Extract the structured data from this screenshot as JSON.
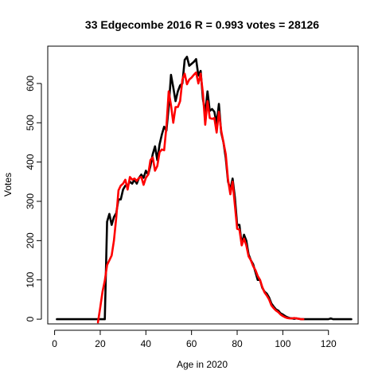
{
  "chart_data": {
    "type": "line",
    "title": "33 Edgecombe 2016 R = 0.993 votes = 28126",
    "xlabel": "Age in 2020",
    "ylabel": "Votes",
    "xlim": [
      -3,
      133
    ],
    "ylim": [
      -12,
      695
    ],
    "x_ticks": [
      0,
      20,
      40,
      60,
      80,
      100,
      120
    ],
    "y_ticks": [
      0,
      100,
      200,
      300,
      400,
      500,
      600
    ],
    "grid": false,
    "legend": "none",
    "series": [
      {
        "color": "#000000",
        "points": [
          [
            1,
            0
          ],
          [
            5,
            0
          ],
          [
            10,
            0
          ],
          [
            15,
            0
          ],
          [
            18,
            0
          ],
          [
            20,
            0
          ],
          [
            21,
            0
          ],
          [
            22,
            0
          ],
          [
            23,
            248
          ],
          [
            24,
            268
          ],
          [
            25,
            240
          ],
          [
            26,
            260
          ],
          [
            27,
            270
          ],
          [
            28,
            305
          ],
          [
            29,
            305
          ],
          [
            30,
            330
          ],
          [
            31,
            340
          ],
          [
            32,
            340
          ],
          [
            33,
            350
          ],
          [
            34,
            345
          ],
          [
            35,
            355
          ],
          [
            36,
            345
          ],
          [
            37,
            360
          ],
          [
            38,
            368
          ],
          [
            39,
            360
          ],
          [
            40,
            378
          ],
          [
            41,
            368
          ],
          [
            42,
            390
          ],
          [
            43,
            420
          ],
          [
            44,
            440
          ],
          [
            45,
            405
          ],
          [
            46,
            445
          ],
          [
            47,
            470
          ],
          [
            48,
            490
          ],
          [
            49,
            480
          ],
          [
            50,
            540
          ],
          [
            51,
            622
          ],
          [
            52,
            590
          ],
          [
            53,
            555
          ],
          [
            54,
            580
          ],
          [
            55,
            595
          ],
          [
            56,
            600
          ],
          [
            57,
            660
          ],
          [
            58,
            668
          ],
          [
            59,
            645
          ],
          [
            60,
            650
          ],
          [
            61,
            655
          ],
          [
            62,
            662
          ],
          [
            63,
            620
          ],
          [
            64,
            632
          ],
          [
            65,
            560
          ],
          [
            66,
            525
          ],
          [
            67,
            580
          ],
          [
            68,
            530
          ],
          [
            69,
            535
          ],
          [
            70,
            528
          ],
          [
            71,
            498
          ],
          [
            72,
            548
          ],
          [
            73,
            475
          ],
          [
            74,
            450
          ],
          [
            75,
            410
          ],
          [
            76,
            350
          ],
          [
            77,
            330
          ],
          [
            78,
            358
          ],
          [
            79,
            310
          ],
          [
            80,
            240
          ],
          [
            81,
            240
          ],
          [
            82,
            190
          ],
          [
            83,
            215
          ],
          [
            84,
            200
          ],
          [
            85,
            165
          ],
          [
            86,
            150
          ],
          [
            87,
            140
          ],
          [
            88,
            120
          ],
          [
            89,
            100
          ],
          [
            90,
            100
          ],
          [
            91,
            80
          ],
          [
            92,
            70
          ],
          [
            93,
            65
          ],
          [
            94,
            55
          ],
          [
            95,
            40
          ],
          [
            96,
            32
          ],
          [
            97,
            25
          ],
          [
            98,
            22
          ],
          [
            99,
            15
          ],
          [
            100,
            12
          ],
          [
            101,
            8
          ],
          [
            102,
            5
          ],
          [
            103,
            3
          ],
          [
            104,
            2
          ],
          [
            105,
            1
          ],
          [
            106,
            2
          ],
          [
            107,
            1
          ],
          [
            108,
            0
          ],
          [
            110,
            0
          ],
          [
            115,
            0
          ],
          [
            120,
            0
          ],
          [
            121,
            2
          ],
          [
            122,
            0
          ],
          [
            125,
            0
          ],
          [
            130,
            0
          ]
        ]
      },
      {
        "color": "#ff0000",
        "points": [
          [
            19,
            -8
          ],
          [
            20,
            30
          ],
          [
            21,
            70
          ],
          [
            22,
            98
          ],
          [
            23,
            138
          ],
          [
            24,
            150
          ],
          [
            25,
            162
          ],
          [
            26,
            200
          ],
          [
            27,
            258
          ],
          [
            28,
            328
          ],
          [
            29,
            340
          ],
          [
            30,
            345
          ],
          [
            31,
            355
          ],
          [
            32,
            330
          ],
          [
            33,
            362
          ],
          [
            34,
            355
          ],
          [
            35,
            358
          ],
          [
            36,
            352
          ],
          [
            37,
            360
          ],
          [
            38,
            362
          ],
          [
            39,
            342
          ],
          [
            40,
            360
          ],
          [
            41,
            368
          ],
          [
            42,
            405
          ],
          [
            43,
            412
          ],
          [
            44,
            378
          ],
          [
            45,
            390
          ],
          [
            46,
            425
          ],
          [
            47,
            432
          ],
          [
            48,
            430
          ],
          [
            49,
            490
          ],
          [
            50,
            580
          ],
          [
            51,
            545
          ],
          [
            52,
            500
          ],
          [
            53,
            540
          ],
          [
            54,
            540
          ],
          [
            55,
            555
          ],
          [
            56,
            610
          ],
          [
            57,
            625
          ],
          [
            58,
            598
          ],
          [
            59,
            610
          ],
          [
            60,
            615
          ],
          [
            61,
            622
          ],
          [
            62,
            628
          ],
          [
            63,
            600
          ],
          [
            64,
            625
          ],
          [
            65,
            575
          ],
          [
            66,
            495
          ],
          [
            67,
            555
          ],
          [
            68,
            512
          ],
          [
            69,
            510
          ],
          [
            70,
            512
          ],
          [
            71,
            475
          ],
          [
            72,
            528
          ],
          [
            73,
            480
          ],
          [
            74,
            450
          ],
          [
            75,
            420
          ],
          [
            76,
            355
          ],
          [
            77,
            318
          ],
          [
            78,
            350
          ],
          [
            79,
            290
          ],
          [
            80,
            230
          ],
          [
            81,
            228
          ],
          [
            82,
            188
          ],
          [
            83,
            205
          ],
          [
            84,
            188
          ],
          [
            85,
            160
          ],
          [
            86,
            150
          ],
          [
            87,
            135
          ],
          [
            88,
            125
          ],
          [
            89,
            110
          ],
          [
            90,
            100
          ],
          [
            91,
            82
          ],
          [
            92,
            68
          ],
          [
            93,
            60
          ],
          [
            94,
            50
          ],
          [
            95,
            35
          ],
          [
            96,
            28
          ],
          [
            97,
            22
          ],
          [
            98,
            18
          ],
          [
            99,
            12
          ],
          [
            100,
            8
          ],
          [
            101,
            5
          ],
          [
            102,
            3
          ],
          [
            103,
            2
          ],
          [
            104,
            2
          ],
          [
            105,
            3
          ],
          [
            106,
            2
          ],
          [
            107,
            1
          ],
          [
            108,
            0
          ],
          [
            109,
            0
          ]
        ]
      }
    ]
  }
}
